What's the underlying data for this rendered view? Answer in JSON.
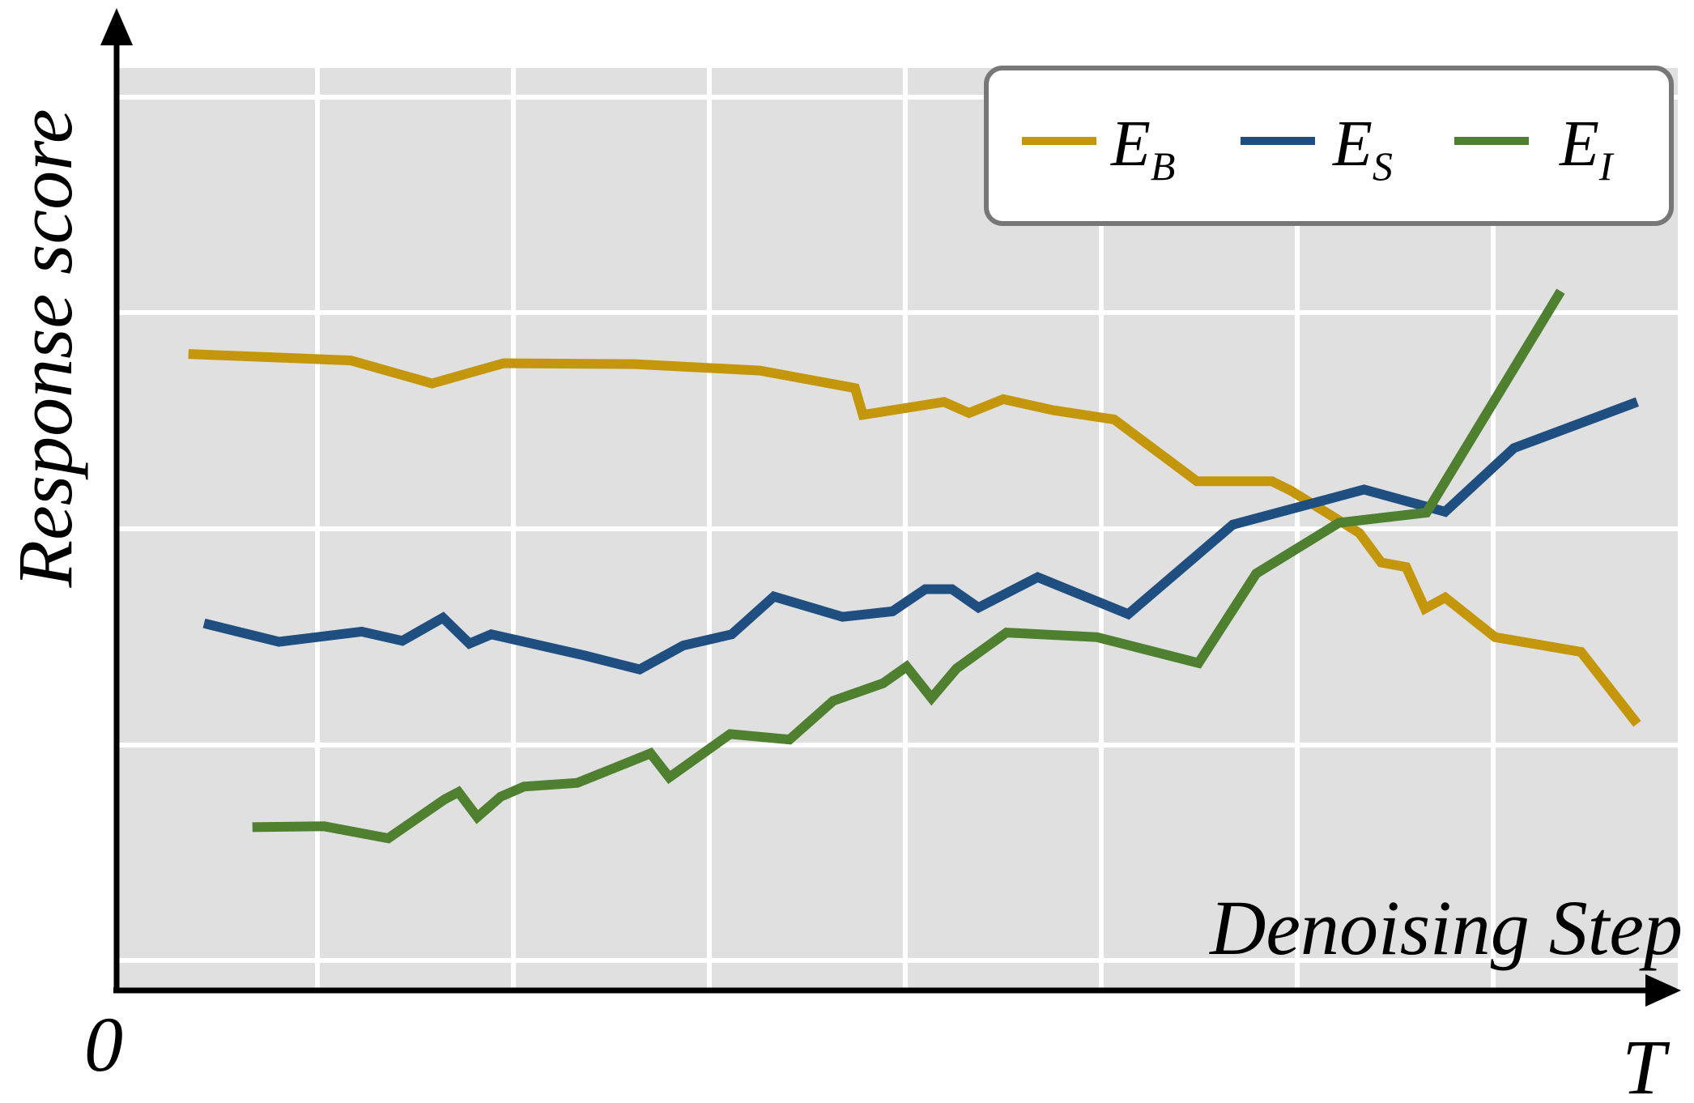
{
  "chart_data": {
    "type": "line",
    "title": "",
    "xlabel": "Denoising Step",
    "ylabel": "Response score",
    "x_start_label": "0",
    "x_end_label": "T",
    "xlim": [
      0,
      1
    ],
    "ylim": [
      0,
      1
    ],
    "grid": true,
    "legend": "top-right",
    "colors": {
      "plot_background": "#e0e0e0",
      "grid": "#ffffff",
      "axis": "#000000",
      "legend_border": "#777777"
    },
    "series": [
      {
        "name": "E",
        "subscript": "B",
        "color": "#c4960c",
        "points": [
          [
            0.046,
            0.69
          ],
          [
            0.15,
            0.683
          ],
          [
            0.202,
            0.658
          ],
          [
            0.248,
            0.68
          ],
          [
            0.332,
            0.679
          ],
          [
            0.412,
            0.672
          ],
          [
            0.473,
            0.653
          ],
          [
            0.478,
            0.624
          ],
          [
            0.53,
            0.638
          ],
          [
            0.546,
            0.626
          ],
          [
            0.568,
            0.641
          ],
          [
            0.6,
            0.629
          ],
          [
            0.639,
            0.619
          ],
          [
            0.692,
            0.552
          ],
          [
            0.74,
            0.552
          ],
          [
            0.752,
            0.542
          ],
          [
            0.796,
            0.496
          ],
          [
            0.81,
            0.464
          ],
          [
            0.826,
            0.459
          ],
          [
            0.838,
            0.414
          ],
          [
            0.851,
            0.426
          ],
          [
            0.883,
            0.383
          ],
          [
            0.938,
            0.367
          ],
          [
            0.974,
            0.289
          ]
        ]
      },
      {
        "name": "E",
        "subscript": "S",
        "color": "#1f4e80",
        "points": [
          [
            0.056,
            0.398
          ],
          [
            0.104,
            0.378
          ],
          [
            0.157,
            0.389
          ],
          [
            0.183,
            0.379
          ],
          [
            0.209,
            0.404
          ],
          [
            0.226,
            0.376
          ],
          [
            0.24,
            0.386
          ],
          [
            0.3,
            0.363
          ],
          [
            0.335,
            0.348
          ],
          [
            0.363,
            0.374
          ],
          [
            0.394,
            0.386
          ],
          [
            0.421,
            0.427
          ],
          [
            0.465,
            0.405
          ],
          [
            0.497,
            0.411
          ],
          [
            0.518,
            0.435
          ],
          [
            0.535,
            0.435
          ],
          [
            0.552,
            0.415
          ],
          [
            0.59,
            0.448
          ],
          [
            0.648,
            0.408
          ],
          [
            0.715,
            0.505
          ],
          [
            0.799,
            0.543
          ],
          [
            0.851,
            0.519
          ],
          [
            0.895,
            0.588
          ],
          [
            0.974,
            0.638
          ]
        ]
      },
      {
        "name": "E",
        "subscript": "I",
        "color": "#4e8030",
        "points": [
          [
            0.087,
            0.177
          ],
          [
            0.133,
            0.178
          ],
          [
            0.174,
            0.165
          ],
          [
            0.21,
            0.207
          ],
          [
            0.219,
            0.215
          ],
          [
            0.231,
            0.188
          ],
          [
            0.246,
            0.21
          ],
          [
            0.261,
            0.221
          ],
          [
            0.295,
            0.225
          ],
          [
            0.342,
            0.257
          ],
          [
            0.354,
            0.231
          ],
          [
            0.393,
            0.278
          ],
          [
            0.431,
            0.272
          ],
          [
            0.459,
            0.314
          ],
          [
            0.491,
            0.333
          ],
          [
            0.506,
            0.351
          ],
          [
            0.522,
            0.317
          ],
          [
            0.538,
            0.349
          ],
          [
            0.57,
            0.388
          ],
          [
            0.628,
            0.383
          ],
          [
            0.693,
            0.355
          ],
          [
            0.73,
            0.452
          ],
          [
            0.783,
            0.507
          ],
          [
            0.839,
            0.518
          ],
          [
            0.925,
            0.758
          ]
        ]
      }
    ]
  }
}
